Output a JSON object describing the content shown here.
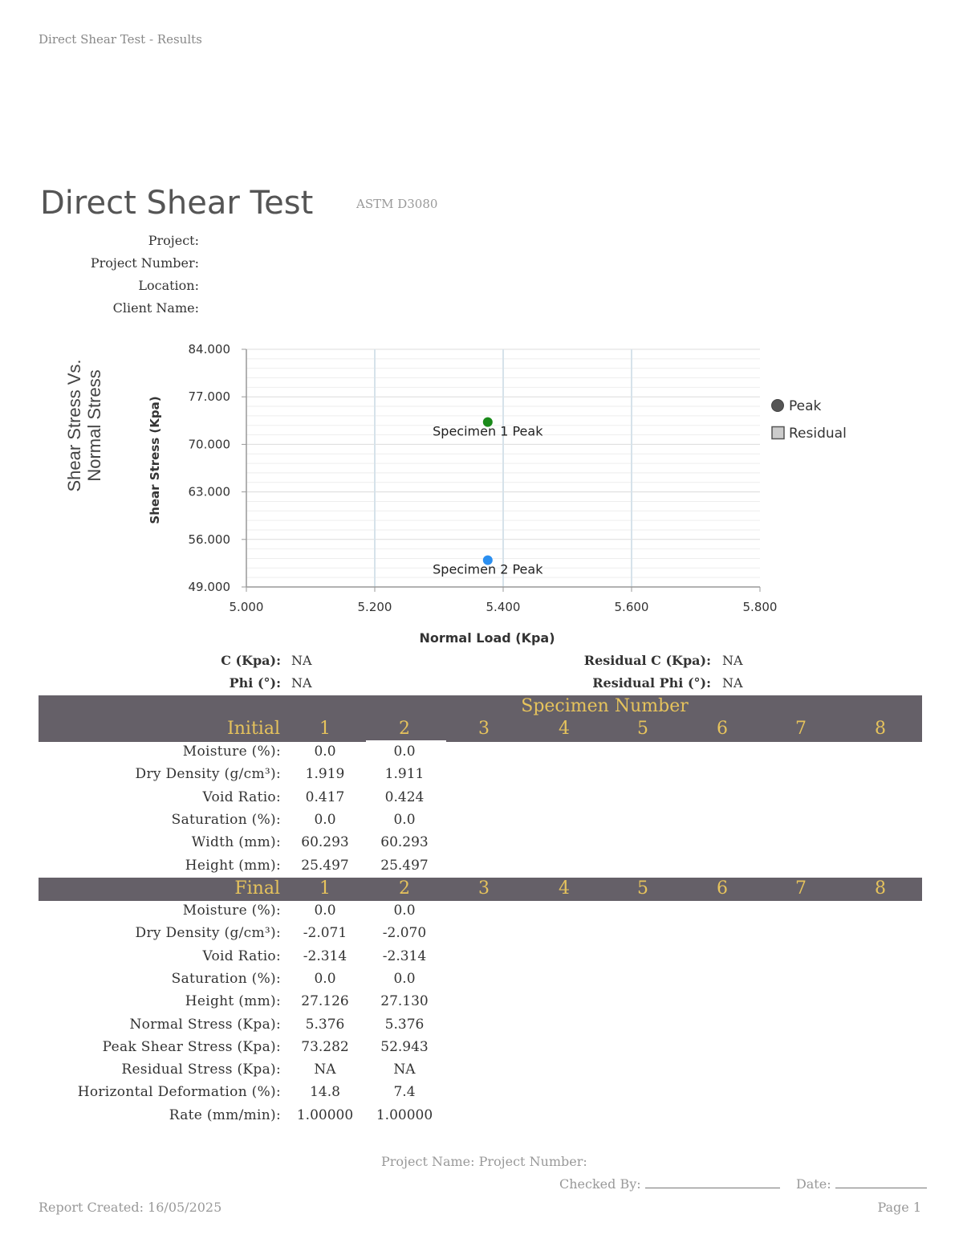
{
  "header": {
    "title": "Direct Shear Test - Results"
  },
  "report": {
    "title": "Direct Shear Test",
    "standard": "ASTM D3080",
    "meta_labels": [
      "Project:",
      "Project Number:",
      "Location:",
      "Client Name:"
    ]
  },
  "chart_side_title": {
    "line1": "Shear Stress Vs.",
    "line2": "Normal Stress"
  },
  "chart_data": {
    "type": "scatter",
    "xlabel": "Normal Load (Kpa)",
    "ylabel": "Shear Stress (Kpa)",
    "xlim": [
      5.0,
      5.8
    ],
    "ylim": [
      49.0,
      84.0
    ],
    "xticks": [
      "5.000",
      "5.200",
      "5.400",
      "5.600",
      "5.800"
    ],
    "yticks": [
      "84.000",
      "77.000",
      "70.000",
      "63.000",
      "56.000",
      "49.000"
    ],
    "points": [
      {
        "label": "Specimen 1 Peak",
        "x": 5.376,
        "y": 73.282,
        "color": "#1a8a1a"
      },
      {
        "label": "Specimen 2 Peak",
        "x": 5.376,
        "y": 52.943,
        "color": "#2b8ff0"
      }
    ],
    "legend": [
      {
        "name": "Peak",
        "marker": "circle",
        "color": "#555555"
      },
      {
        "name": "Residual",
        "marker": "square",
        "color": "#cccccc"
      }
    ],
    "legend_position": "right"
  },
  "params": {
    "c_label": "C (Kpa):",
    "c_value": "NA",
    "phi_label": "Phi (°):",
    "phi_value": "NA",
    "rc_label": "Residual C (Kpa):",
    "rc_value": "NA",
    "rphi_label": "Residual Phi (°):",
    "rphi_value": "NA"
  },
  "table": {
    "specimen_header": "Specimen Number",
    "initial_label": "Initial",
    "final_label": "Final",
    "columns": [
      "1",
      "2",
      "3",
      "4",
      "5",
      "6",
      "7",
      "8"
    ],
    "initial_rows": [
      {
        "label": "Moisture (%):",
        "values": [
          "0.0",
          "0.0"
        ]
      },
      {
        "label": "Dry Density (g/cm³):",
        "values": [
          "1.919",
          "1.911"
        ]
      },
      {
        "label": "Void Ratio:",
        "values": [
          "0.417",
          "0.424"
        ]
      },
      {
        "label": "Saturation (%):",
        "values": [
          "0.0",
          "0.0"
        ]
      },
      {
        "label": "Width (mm):",
        "values": [
          "60.293",
          "60.293"
        ]
      },
      {
        "label": "Height (mm):",
        "values": [
          "25.497",
          "25.497"
        ]
      }
    ],
    "final_rows": [
      {
        "label": "Moisture (%):",
        "values": [
          "0.0",
          "0.0"
        ]
      },
      {
        "label": "Dry Density (g/cm³):",
        "values": [
          "-2.071",
          "-2.070"
        ]
      },
      {
        "label": "Void Ratio:",
        "values": [
          "-2.314",
          "-2.314"
        ]
      },
      {
        "label": "Saturation (%):",
        "values": [
          "0.0",
          "0.0"
        ]
      },
      {
        "label": "Height (mm):",
        "values": [
          "27.126",
          "27.130"
        ]
      },
      {
        "label": "Normal Stress (Kpa):",
        "values": [
          "5.376",
          "5.376"
        ]
      },
      {
        "label": "Peak Shear Stress (Kpa):",
        "values": [
          "73.282",
          "52.943"
        ]
      },
      {
        "label": "Residual Stress (Kpa):",
        "values": [
          "NA",
          "NA"
        ]
      },
      {
        "label": "Horizontal Deformation (%):",
        "values": [
          "14.8",
          "7.4"
        ]
      },
      {
        "label": "Rate (mm/min):",
        "values": [
          "1.00000",
          "1.00000"
        ]
      }
    ]
  },
  "footer": {
    "project_line": "Project Name:  Project Number:",
    "checked_by": "Checked By:",
    "date_label": "Date:",
    "report_created": "Report Created: 16/05/2025",
    "page": "Page 1"
  }
}
